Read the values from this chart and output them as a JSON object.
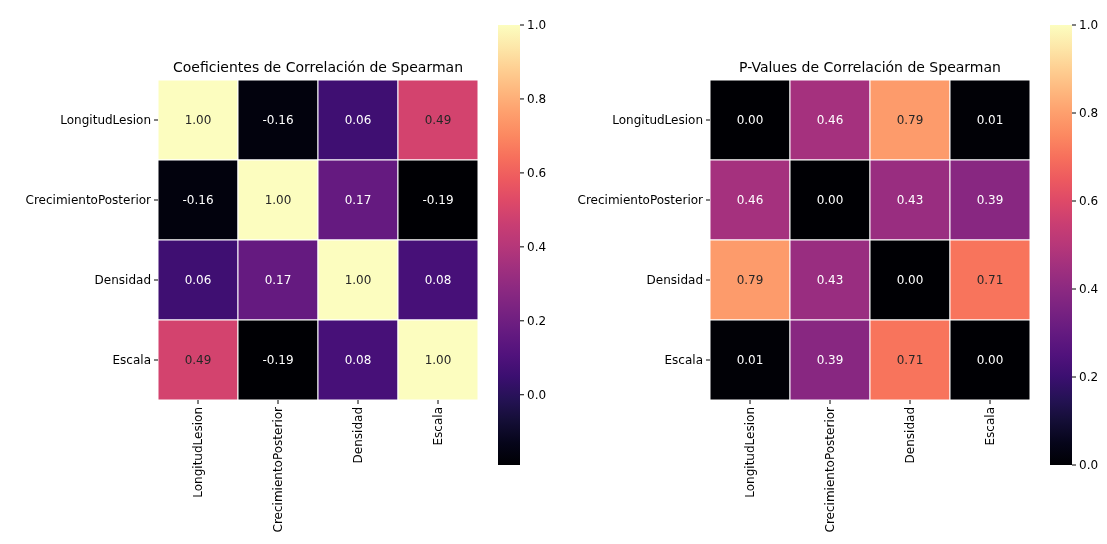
{
  "chart_data": [
    {
      "type": "heatmap",
      "title": "Coeficientes de Correlación de Spearman",
      "categories": [
        "LongitudLesion",
        "CrecimientoPosterior",
        "Densidad",
        "Escala"
      ],
      "y_categories": [
        "LongitudLesion",
        "CrecimientoPosterior",
        "Densidad",
        "Escala"
      ],
      "cells": [
        [
          1.0,
          -0.16,
          0.06,
          0.49
        ],
        [
          -0.16,
          1.0,
          0.17,
          -0.19
        ],
        [
          0.06,
          0.17,
          1.0,
          0.08
        ],
        [
          0.49,
          -0.19,
          0.08,
          1.0
        ]
      ],
      "cell_labels": [
        [
          "1.00",
          "-0.16",
          "0.06",
          "0.49"
        ],
        [
          "-0.16",
          "1.00",
          "0.17",
          "-0.19"
        ],
        [
          "0.06",
          "0.17",
          "1.00",
          "0.08"
        ],
        [
          "0.49",
          "-0.19",
          "0.08",
          "1.00"
        ]
      ],
      "clim": [
        -0.19,
        1.0
      ],
      "cticks": [
        {
          "value": 0,
          "label": "0.0"
        },
        {
          "value": 0.2,
          "label": "0.2"
        },
        {
          "value": 0.4,
          "label": "0.4"
        },
        {
          "value": 0.6,
          "label": "0.6"
        },
        {
          "value": 0.8,
          "label": "0.8"
        },
        {
          "value": 1,
          "label": "1.0"
        }
      ]
    },
    {
      "type": "heatmap",
      "title": "P-Values de Correlación de Spearman",
      "categories": [
        "LongitudLesion",
        "CrecimientoPosterior",
        "Densidad",
        "Escala"
      ],
      "y_categories": [
        "LongitudLesion",
        "CrecimientoPosterior",
        "Densidad",
        "Escala"
      ],
      "cells": [
        [
          0.0,
          0.46,
          0.79,
          0.01
        ],
        [
          0.46,
          0.0,
          0.43,
          0.39
        ],
        [
          0.79,
          0.43,
          0.0,
          0.71
        ],
        [
          0.01,
          0.39,
          0.71,
          0.0
        ]
      ],
      "cell_labels": [
        [
          "0.00",
          "0.46",
          "0.79",
          "0.01"
        ],
        [
          "0.46",
          "0.00",
          "0.43",
          "0.39"
        ],
        [
          "0.79",
          "0.43",
          "0.00",
          "0.71"
        ],
        [
          "0.01",
          "0.39",
          "0.71",
          "0.00"
        ]
      ],
      "clim": [
        0,
        1
      ],
      "cticks": [
        {
          "value": 0,
          "label": "0.0"
        },
        {
          "value": 0.2,
          "label": "0.2"
        },
        {
          "value": 0.4,
          "label": "0.4"
        },
        {
          "value": 0.6,
          "label": "0.6"
        },
        {
          "value": 0.8,
          "label": "0.8"
        },
        {
          "value": 1,
          "label": "1.0"
        }
      ]
    }
  ]
}
